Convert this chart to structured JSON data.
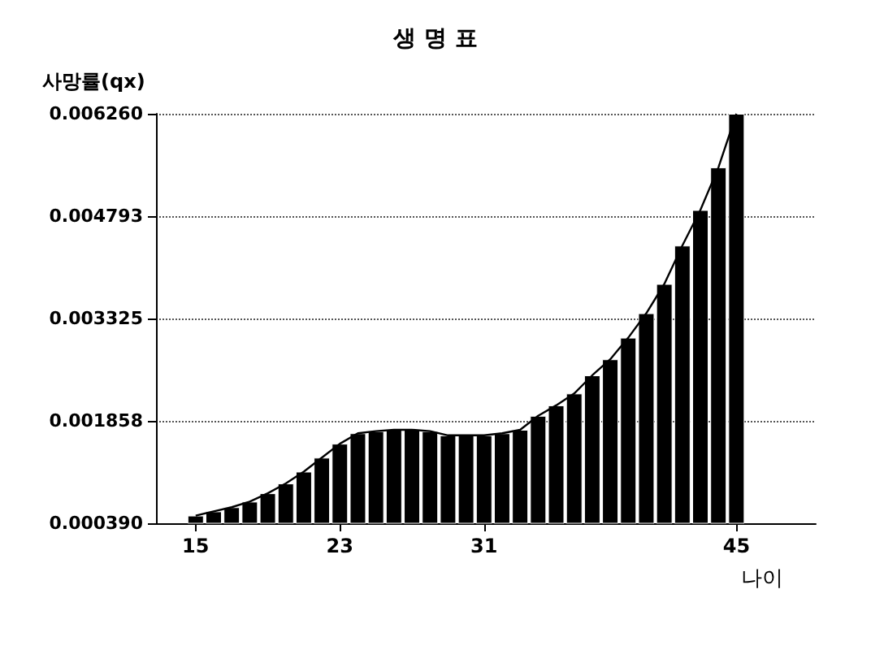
{
  "chart_data": {
    "type": "bar",
    "title": "생 명 표",
    "ylabel": "사망률(qx)",
    "xlabel": "나이",
    "x": [
      15,
      16,
      17,
      18,
      19,
      20,
      21,
      22,
      23,
      24,
      25,
      26,
      27,
      28,
      29,
      30,
      31,
      32,
      33,
      34,
      35,
      36,
      37,
      38,
      39,
      40,
      41,
      42,
      43,
      44,
      45
    ],
    "series": [
      {
        "color": "#000000",
        "values": [
          0.0005,
          0.00056,
          0.00062,
          0.0007,
          0.00082,
          0.00096,
          0.00113,
          0.00133,
          0.00153,
          0.00168,
          0.00171,
          0.00173,
          0.00173,
          0.00171,
          0.00165,
          0.00165,
          0.00165,
          0.00168,
          0.00173,
          0.00193,
          0.00208,
          0.00225,
          0.00251,
          0.00274,
          0.00305,
          0.0034,
          0.00382,
          0.00437,
          0.00488,
          0.00549,
          0.00626
        ]
      },
      {
        "type": "line",
        "color": "#000000",
        "values": [
          0.0005,
          0.00056,
          0.00062,
          0.0007,
          0.00082,
          0.00096,
          0.00113,
          0.00133,
          0.00153,
          0.00168,
          0.00171,
          0.00173,
          0.00173,
          0.00171,
          0.00165,
          0.00165,
          0.00165,
          0.00168,
          0.00173,
          0.00193,
          0.00208,
          0.00225,
          0.00251,
          0.00274,
          0.00305,
          0.0034,
          0.00382,
          0.00437,
          0.00488,
          0.00549,
          0.00626
        ]
      }
    ],
    "xlim": [
      12.8,
      49.4
    ],
    "xticks": [
      15,
      23,
      31,
      45
    ],
    "ylim": [
      0.00039,
      0.00626
    ],
    "yticks": [
      {
        "value": 0.00039,
        "label": "0.000390"
      },
      {
        "value": 0.001858,
        "label": "0.001858"
      },
      {
        "value": 0.003325,
        "label": "0.003325"
      },
      {
        "value": 0.004793,
        "label": "0.004793"
      },
      {
        "value": 0.00626,
        "label": "0.006260"
      }
    ],
    "grid": "y",
    "line_style": "solid",
    "marker": "none"
  }
}
